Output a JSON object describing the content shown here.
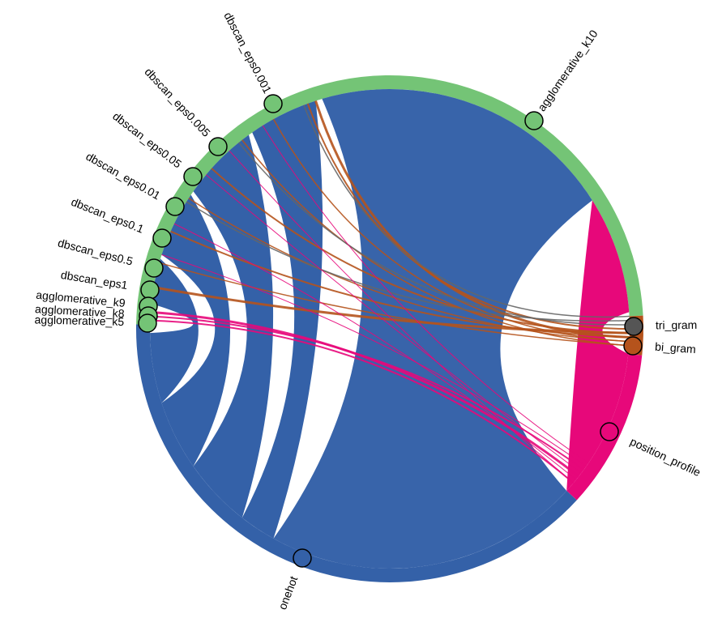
{
  "nodes": [
    {
      "label": "dbscan_eps0.001",
      "color": "#74c476"
    },
    {
      "label": "dbscan_eps0.005",
      "color": "#74c476"
    },
    {
      "label": "dbscan_eps0.05",
      "color": "#74c476"
    },
    {
      "label": "dbscan_eps0.01",
      "color": "#74c476"
    },
    {
      "label": "dbscan_eps0.1",
      "color": "#74c476"
    },
    {
      "label": "dbscan_eps0.5",
      "color": "#74c476"
    },
    {
      "label": "dbscan_eps1",
      "color": "#74c476"
    },
    {
      "label": "agglomerative_k9",
      "color": "#74c476"
    },
    {
      "label": "agglomerative_k8",
      "color": "#74c476"
    },
    {
      "label": "agglomerative_k5",
      "color": "#74c476"
    },
    {
      "label": "agglomerative_k10",
      "color": "#74c476"
    },
    {
      "label": "tri_gram",
      "color": "#555555"
    },
    {
      "label": "bi_gram",
      "color": "#b5531c"
    },
    {
      "label": "position_profile",
      "color": "#e7087a"
    },
    {
      "label": "onehot",
      "color": "#3461a8"
    }
  ]
}
